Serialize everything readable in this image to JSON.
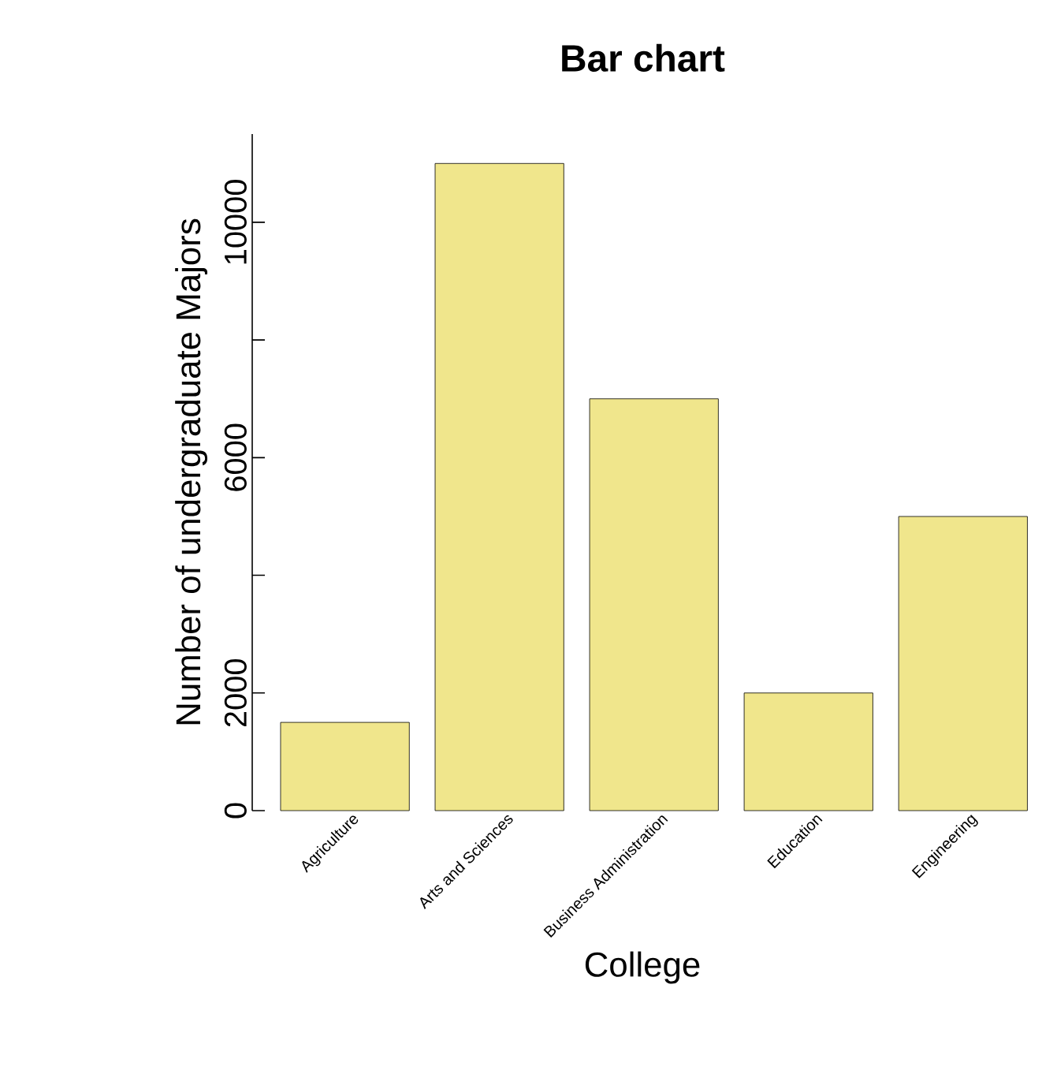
{
  "chart_data": {
    "type": "bar",
    "title": "Bar chart",
    "xlabel": "College",
    "ylabel": "Number of undergraduate Majors",
    "categories": [
      "Agriculture",
      "Arts and Sciences",
      "Business Administration",
      "Education",
      "Engineering"
    ],
    "values": [
      1500,
      11000,
      7000,
      2000,
      5000
    ],
    "color": "#f0e68c",
    "ylim": [
      0,
      11500
    ],
    "yticks": [
      0,
      2000,
      {
        "value": 4000,
        "label": null
      },
      6000,
      {
        "value": 8000,
        "label": null
      },
      10000
    ]
  }
}
